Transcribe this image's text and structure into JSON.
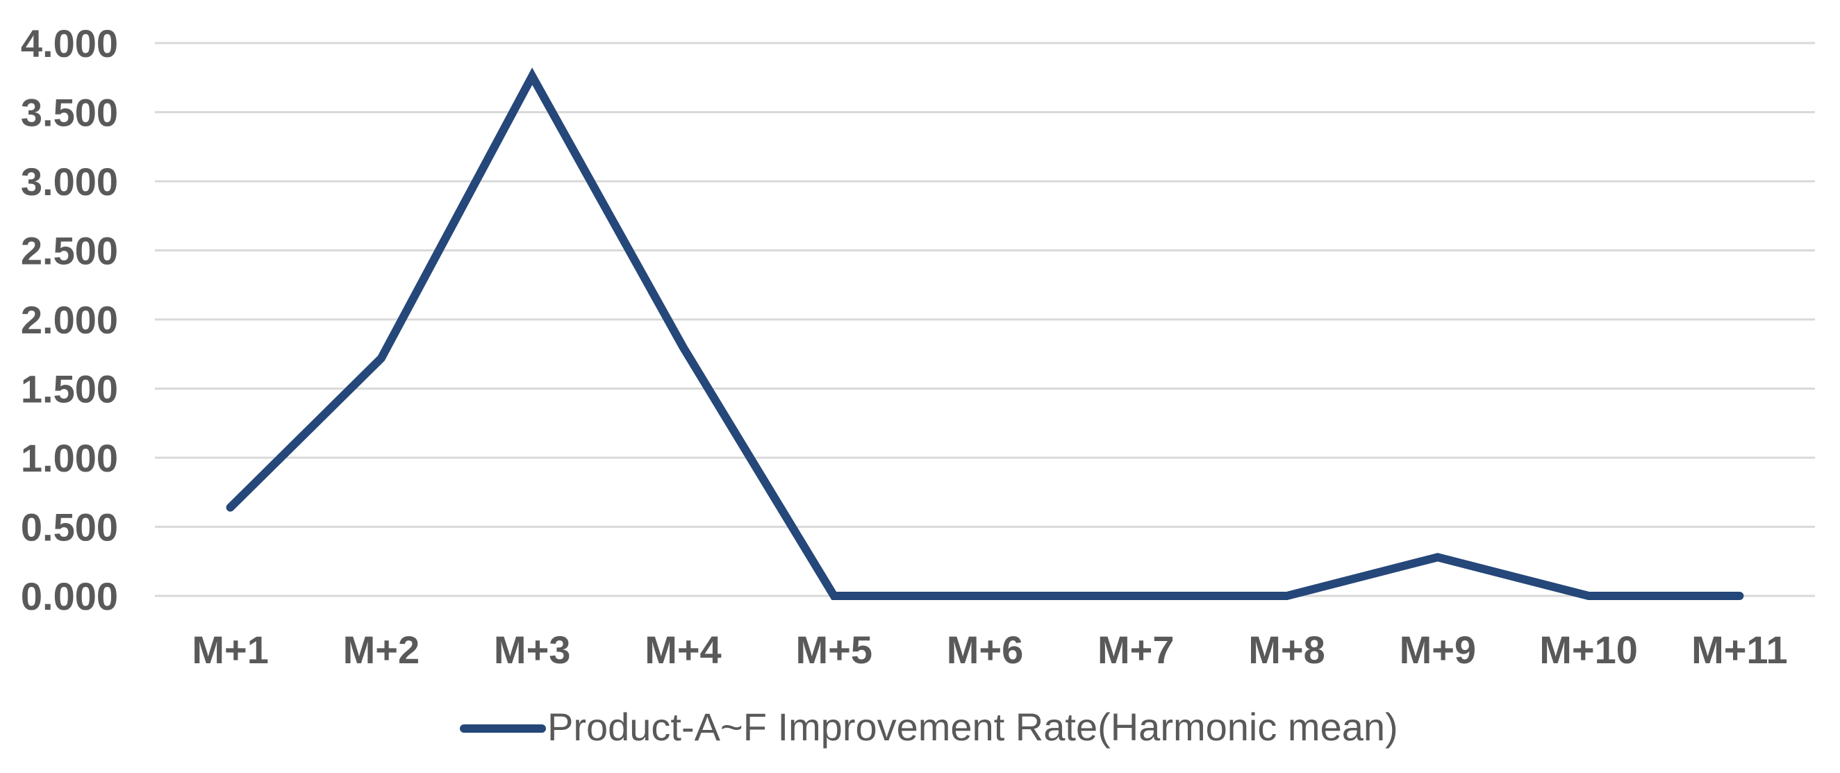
{
  "chart_data": {
    "type": "line",
    "categories": [
      "M+1",
      "M+2",
      "M+3",
      "M+4",
      "M+5",
      "M+6",
      "M+7",
      "M+8",
      "M+9",
      "M+10",
      "M+11"
    ],
    "series": [
      {
        "name": "Product-A~F Improvement Rate(Harmonic mean)",
        "values": [
          0.64,
          1.72,
          3.76,
          1.8,
          0.0,
          0.0,
          0.0,
          0.0,
          0.28,
          0.0,
          0.0
        ]
      }
    ],
    "title": "",
    "xlabel": "",
    "ylabel": "",
    "ylim": [
      0.0,
      4.0
    ],
    "ytick_step": 0.5,
    "ytick_decimals": 3,
    "ytick_labels": [
      "4.000",
      "3.500",
      "3.000",
      "2.500",
      "2.000",
      "1.500",
      "1.000",
      "0.500",
      "0.000"
    ],
    "grid": "horizontal",
    "legend_position": "bottom-center",
    "colors": {
      "line": "#254779",
      "gridline": "#D9D9D9",
      "tick_label": "#595959",
      "legend_text": "#595959",
      "background": "#FFFFFF"
    }
  }
}
